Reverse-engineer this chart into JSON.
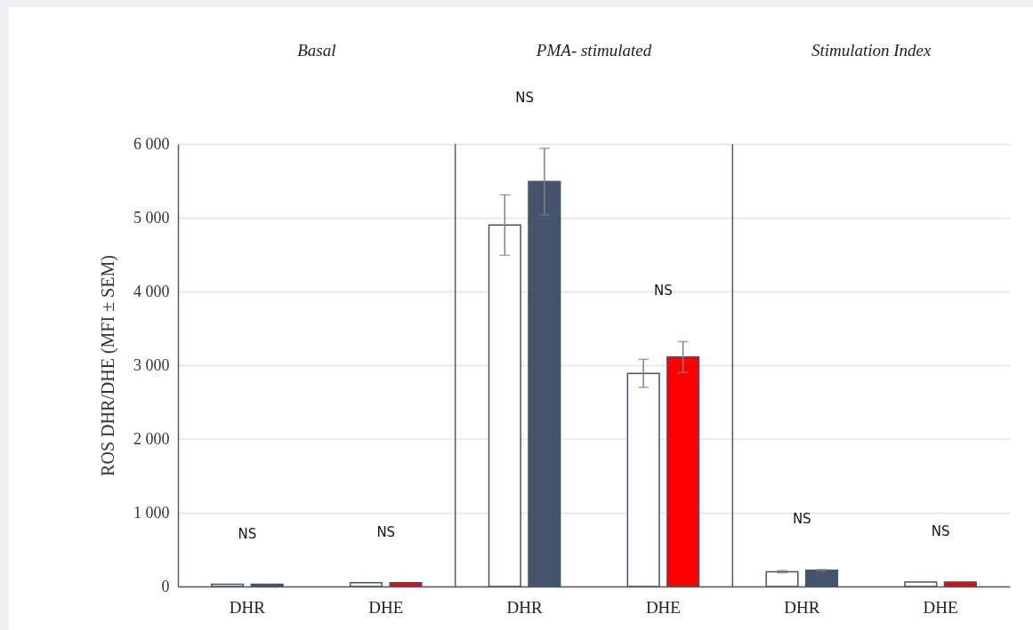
{
  "chart_data": {
    "type": "bar",
    "ylabel": "ROS DHR/DHE (MFI ± SEM)",
    "categories": [
      "DHR",
      "DHE",
      "DHR",
      "DHE",
      "DHR",
      "DHE"
    ],
    "series": [
      {
        "color": "#ffffff",
        "values": [
          30,
          50,
          4900,
          2890,
          200,
          60
        ],
        "errors": [
          null,
          null,
          410,
          190,
          15,
          null
        ]
      },
      {
        "colors": [
          "#44546a",
          "#ff0000",
          "#44546a",
          "#ff0000",
          "#44546a",
          "#ff0000"
        ],
        "values": [
          30,
          50,
          5490,
          3110,
          220,
          60
        ],
        "errors": [
          null,
          null,
          450,
          210,
          10,
          null
        ]
      }
    ],
    "ylim": [
      0,
      6000
    ],
    "yticks": [
      0,
      {
        "value": 1000,
        "label": "1 000"
      },
      {
        "value": 2000,
        "label": "2 000"
      },
      {
        "value": 3000,
        "label": "3 000"
      },
      {
        "value": 4000,
        "label": "4 000"
      },
      {
        "value": 5000,
        "label": "5 000"
      },
      {
        "value": 6000,
        "label": "6 000"
      }
    ],
    "grid": "y",
    "annotations": [
      "Basal",
      "PMA- stimulated",
      "Stimulation Index",
      "NS",
      "NS",
      "NS",
      "NS",
      "NS",
      "NS"
    ]
  }
}
